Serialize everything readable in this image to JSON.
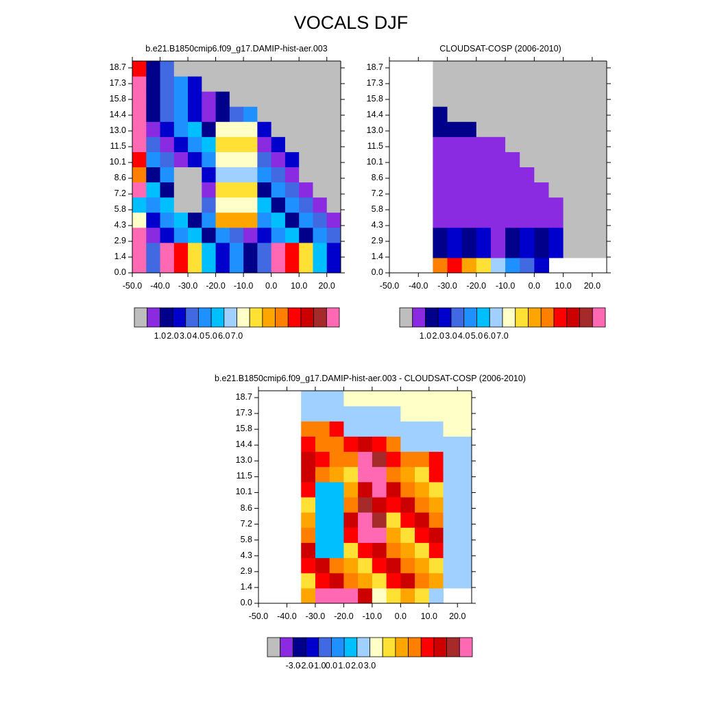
{
  "title": "VOCALS DJF",
  "palette_levels": [
    "#bebebe",
    "#8a2be2",
    "#00008b",
    "#0000cd",
    "#4169e1",
    "#1e90ff",
    "#00bfff",
    "#a0d0ff",
    "#ffffc8",
    "#ffe135",
    "#ffa500",
    "#ff7f00",
    "#ff0000",
    "#cd0000",
    "#a52a2a",
    "#ff69b4"
  ],
  "chart_data": [
    {
      "type": "heatmap",
      "title": "b.e21.B1850cmip6.f09_g17.DAMIP-hist-aer.003",
      "x_ticks": [
        "-50.0",
        "-40.0",
        "-30.0",
        "-20.0",
        "-10.0",
        "0.0",
        "10.0",
        "20.0"
      ],
      "y_ticks": [
        "0.0",
        "1.4",
        "2.9",
        "4.3",
        "5.8",
        "7.2",
        "8.6",
        "10.1",
        "11.5",
        "13.0",
        "14.4",
        "15.8",
        "17.3",
        "18.7"
      ],
      "colorbar_labels": [
        "1.0",
        "2.0",
        "3.0",
        "4.0",
        "5.0",
        "6.0",
        "7.0"
      ],
      "missing_color": "#bebebe"
    },
    {
      "type": "heatmap",
      "title": "CLOUDSAT-COSP (2006-2010)",
      "x_ticks": [
        "-50.0",
        "-40.0",
        "-30.0",
        "-20.0",
        "-10.0",
        "0.0",
        "10.0",
        "20.0"
      ],
      "y_ticks": [
        "0.0",
        "1.4",
        "2.9",
        "4.3",
        "5.8",
        "7.2",
        "8.6",
        "10.1",
        "11.5",
        "13.0",
        "14.4",
        "15.8",
        "17.3",
        "18.7"
      ],
      "colorbar_labels": [
        "1.0",
        "2.0",
        "3.0",
        "4.0",
        "5.0",
        "6.0",
        "7.0"
      ],
      "missing_color": "#bebebe"
    },
    {
      "type": "heatmap",
      "title": "b.e21.B1850cmip6.f09_g17.DAMIP-hist-aer.003 - CLOUDSAT-COSP (2006-2010)",
      "x_ticks": [
        "-50.0",
        "-40.0",
        "-30.0",
        "-20.0",
        "-10.0",
        "0.0",
        "10.0",
        "20.0"
      ],
      "y_ticks": [
        "0.0",
        "1.4",
        "2.9",
        "4.3",
        "5.8",
        "7.2",
        "8.6",
        "10.1",
        "11.5",
        "13.0",
        "14.4",
        "15.8",
        "17.3",
        "18.7"
      ],
      "colorbar_labels": [
        "-3.0",
        "-2.0",
        "-1.0",
        "0.0",
        "1.0",
        "2.0",
        "3.0"
      ],
      "missing_color": "#bebebe"
    }
  ]
}
